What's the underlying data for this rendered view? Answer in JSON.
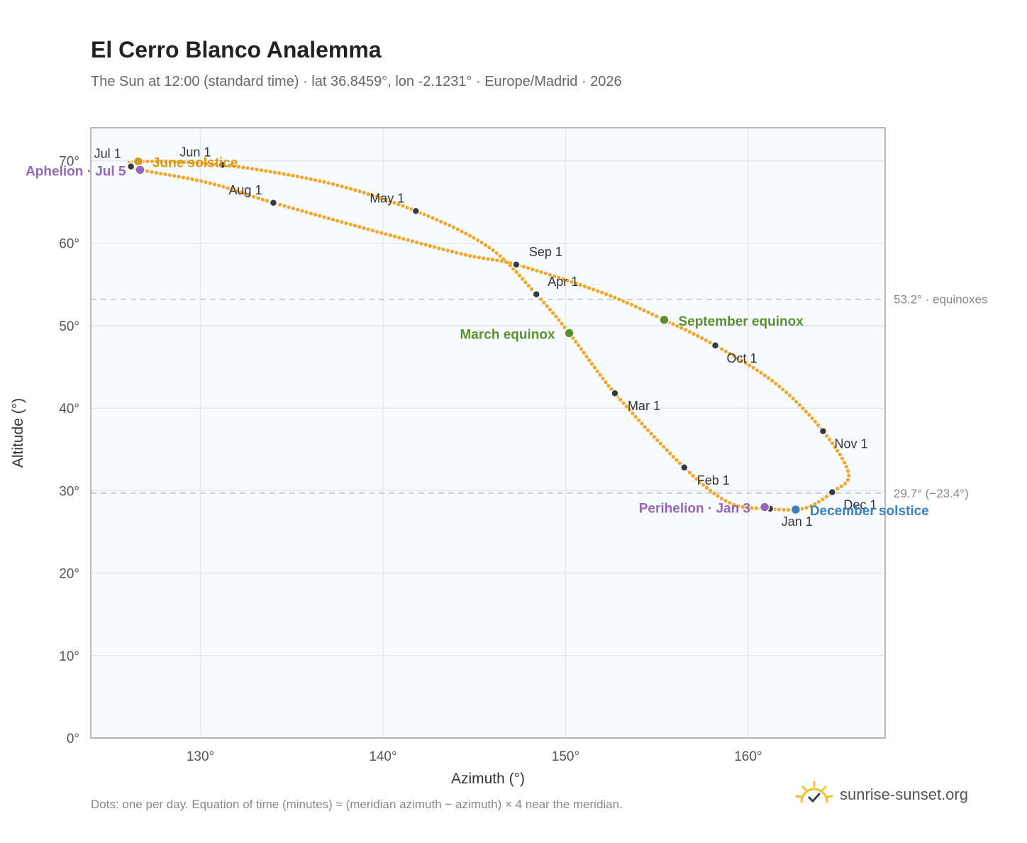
{
  "header": {
    "title": "El Cerro Blanco Analemma",
    "subtitle": "The Sun at 12:00 (standard time) · lat 36.8459°, lon -2.1231° · Europe/Madrid · 2026"
  },
  "footer": {
    "note": "Dots: one per day. Equation of time (minutes) ≈ (meridian azimuth − azimuth) × 4 near the meridian.",
    "brand": "sunrise-sunset.org",
    "brand_icon": "sun-icon"
  },
  "colors": {
    "curve": "#f2a62a",
    "month_dot": "#333a44",
    "equinox": "#5b8f2f",
    "june_solstice": "#d69a1a",
    "december_solstice": "#3d7fc1",
    "apsis": "#9467bd",
    "grid": "#e3e8ee",
    "plot_bg": "#f8fbfd",
    "frame": "#9aa3ad",
    "refline": "#b8c4cc"
  },
  "chart_data": {
    "type": "scatter",
    "xlabel": "Azimuth (°)",
    "ylabel": "Altitude (°)",
    "xlim": [
      124,
      167.5
    ],
    "ylim": [
      0,
      74
    ],
    "xticks": [
      {
        "value": 130,
        "label": "130°"
      },
      {
        "value": 140,
        "label": "140°"
      },
      {
        "value": 150,
        "label": "150°"
      },
      {
        "value": 160,
        "label": "160°"
      }
    ],
    "yticks": [
      {
        "value": 0,
        "label": "0°"
      },
      {
        "value": 10,
        "label": "10°"
      },
      {
        "value": 20,
        "label": "20°"
      },
      {
        "value": 30,
        "label": "30°"
      },
      {
        "value": 40,
        "label": "40°"
      },
      {
        "value": 50,
        "label": "50°"
      },
      {
        "value": 60,
        "label": "60°"
      },
      {
        "value": 70,
        "label": "70°"
      }
    ],
    "grid": true,
    "path_knots": [
      {
        "az": 161.2,
        "alt": 27.8
      },
      {
        "az": 159.0,
        "alt": 28.5
      },
      {
        "az": 156.5,
        "alt": 32.8
      },
      {
        "az": 152.7,
        "alt": 41.8
      },
      {
        "az": 150.2,
        "alt": 49.1
      },
      {
        "az": 148.4,
        "alt": 53.8
      },
      {
        "az": 145.8,
        "alt": 59.5
      },
      {
        "az": 141.8,
        "alt": 63.9
      },
      {
        "az": 137.0,
        "alt": 67.3
      },
      {
        "az": 131.2,
        "alt": 69.5
      },
      {
        "az": 126.6,
        "alt": 69.9
      },
      {
        "az": 126.2,
        "alt": 69.3
      },
      {
        "az": 126.7,
        "alt": 68.9
      },
      {
        "az": 130.5,
        "alt": 67.3
      },
      {
        "az": 134.0,
        "alt": 64.9
      },
      {
        "az": 140.0,
        "alt": 61.2
      },
      {
        "az": 144.5,
        "alt": 58.6
      },
      {
        "az": 147.3,
        "alt": 57.4
      },
      {
        "az": 152.0,
        "alt": 54.0
      },
      {
        "az": 155.4,
        "alt": 50.7
      },
      {
        "az": 158.2,
        "alt": 47.6
      },
      {
        "az": 161.5,
        "alt": 43.0
      },
      {
        "az": 164.1,
        "alt": 37.2
      },
      {
        "az": 165.5,
        "alt": 32.0
      },
      {
        "az": 164.6,
        "alt": 29.8
      },
      {
        "az": 163.5,
        "alt": 28.2
      },
      {
        "az": 162.6,
        "alt": 27.7
      },
      {
        "az": 161.2,
        "alt": 27.8
      }
    ],
    "months": [
      {
        "label": "Jan 1",
        "az": 161.2,
        "alt": 27.8,
        "anchor": "start",
        "dx": 16,
        "dy": 24
      },
      {
        "label": "Feb 1",
        "az": 156.5,
        "alt": 32.8,
        "anchor": "start",
        "dx": 18,
        "dy": 24
      },
      {
        "label": "Mar 1",
        "az": 152.7,
        "alt": 41.8,
        "anchor": "start",
        "dx": 18,
        "dy": 24
      },
      {
        "label": "Apr 1",
        "az": 148.4,
        "alt": 53.8,
        "anchor": "start",
        "dx": 16,
        "dy": -12
      },
      {
        "label": "May 1",
        "az": 141.8,
        "alt": 63.9,
        "anchor": "end",
        "dx": -16,
        "dy": -12
      },
      {
        "label": "Jun 1",
        "az": 131.2,
        "alt": 69.5,
        "anchor": "end",
        "dx": -16,
        "dy": -12
      },
      {
        "label": "Jul 1",
        "az": 126.2,
        "alt": 69.3,
        "anchor": "end",
        "dx": -14,
        "dy": -12
      },
      {
        "label": "Aug 1",
        "az": 134.0,
        "alt": 64.9,
        "anchor": "end",
        "dx": -16,
        "dy": -12
      },
      {
        "label": "Sep 1",
        "az": 147.3,
        "alt": 57.4,
        "anchor": "start",
        "dx": 18,
        "dy": -12
      },
      {
        "label": "Oct 1",
        "az": 158.2,
        "alt": 47.6,
        "anchor": "start",
        "dx": 16,
        "dy": 24
      },
      {
        "label": "Nov 1",
        "az": 164.1,
        "alt": 37.2,
        "anchor": "start",
        "dx": 16,
        "dy": 24
      },
      {
        "label": "Dec 1",
        "az": 164.6,
        "alt": 29.8,
        "anchor": "start",
        "dx": 16,
        "dy": 24
      }
    ],
    "events": [
      {
        "label": "March equinox",
        "az": 150.2,
        "alt": 49.1,
        "color": "#5b8f2f",
        "anchor": "end",
        "dx": -20,
        "dy": 8
      },
      {
        "label": "September equinox",
        "az": 155.4,
        "alt": 50.7,
        "color": "#5b8f2f",
        "anchor": "start",
        "dx": 20,
        "dy": 8
      },
      {
        "label": "June solstice",
        "az": 126.6,
        "alt": 69.9,
        "color": "#d69a1a",
        "anchor": "start",
        "dx": 20,
        "dy": 8
      },
      {
        "label": "December solstice",
        "az": 162.6,
        "alt": 27.7,
        "color": "#3d7fc1",
        "anchor": "start",
        "dx": 20,
        "dy": 8
      },
      {
        "label": "Aphelion · Jul 5",
        "az": 126.7,
        "alt": 68.9,
        "color": "#9467bd",
        "anchor": "end",
        "dx": -20,
        "dy": 8
      },
      {
        "label": "Perihelion · Jan 3",
        "az": 160.9,
        "alt": 28.0,
        "color": "#9467bd",
        "anchor": "end",
        "dx": -20,
        "dy": 8
      }
    ],
    "reference_lines": [
      {
        "value": 53.2,
        "label": "53.2° · equinoxes"
      },
      {
        "value": 29.7,
        "label": "29.7° (−23.4°)"
      }
    ]
  }
}
